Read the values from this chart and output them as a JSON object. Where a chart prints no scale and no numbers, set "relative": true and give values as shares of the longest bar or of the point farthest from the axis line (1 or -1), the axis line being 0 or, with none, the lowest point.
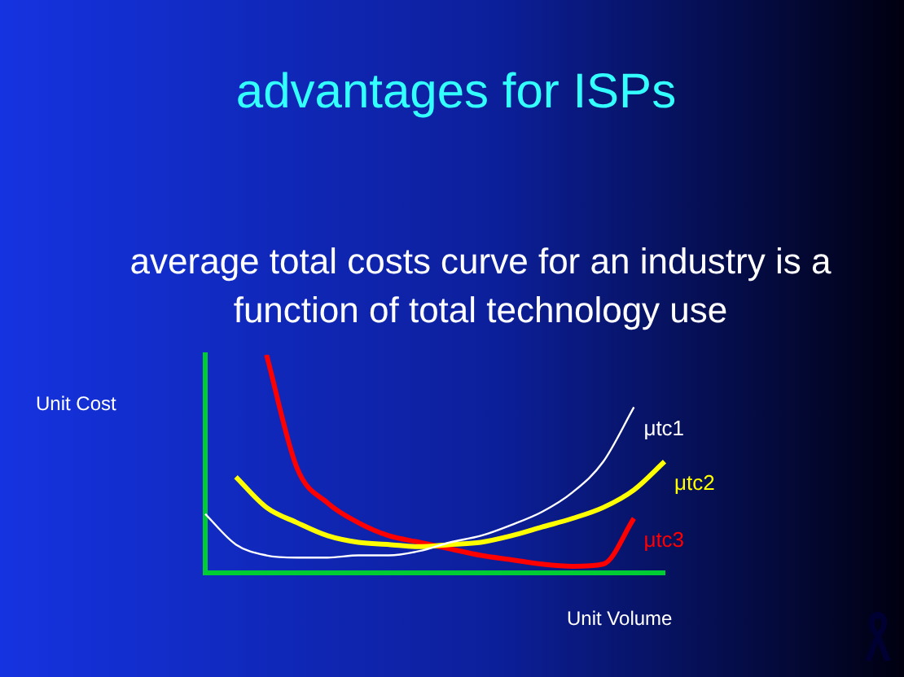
{
  "chart_data": {
    "type": "line",
    "title": "advantages for ISPs",
    "subtitle": "average total costs curve for an industry is a function of total technology use",
    "xlabel": "Unit Volume",
    "ylabel": "Unit Cost",
    "relative": true,
    "categories": [
      null,
      null,
      null,
      null,
      null,
      null,
      null,
      null,
      null,
      null,
      null,
      null,
      null,
      null,
      null,
      null
    ],
    "series": [
      {
        "name": "μtc1",
        "color": "#ffffff",
        "values": [
          0.27,
          0.13,
          0.08,
          0.07,
          0.07,
          0.08,
          0.08,
          0.1,
          0.14,
          0.17,
          0.22,
          0.28,
          0.37,
          0.51,
          0.76,
          null
        ]
      },
      {
        "name": "μtc2",
        "color": "#ffff00",
        "values": [
          null,
          0.44,
          0.3,
          0.23,
          0.17,
          0.14,
          0.13,
          0.12,
          0.13,
          0.14,
          0.17,
          0.21,
          0.25,
          0.3,
          0.38,
          0.51
        ]
      },
      {
        "name": "μtc3",
        "color": "#ff0000",
        "values": [
          null,
          null,
          1,
          0.48,
          0.32,
          0.23,
          0.17,
          0.14,
          0.11,
          0.08,
          0.06,
          0.04,
          0.03,
          0.04,
          0.25,
          null
        ]
      }
    ],
    "grid": false,
    "legend": false,
    "marker": "none",
    "line_style": "solid"
  }
}
